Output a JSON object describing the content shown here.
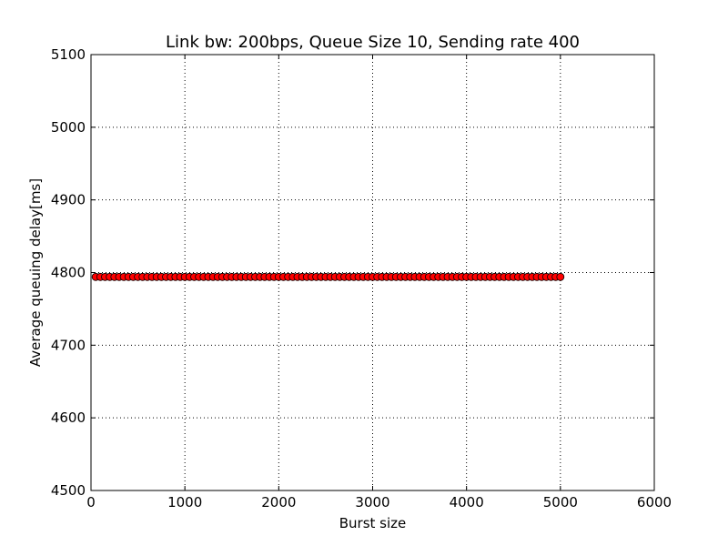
{
  "chart_data": {
    "type": "scatter",
    "title": "Link bw: 200bps, Queue Size 10, Sending rate 400",
    "xlabel": "Burst size",
    "ylabel": "Average queuing delay[ms]",
    "xlim": [
      0,
      6000
    ],
    "ylim": [
      4500,
      5100
    ],
    "xticks": [
      0,
      1000,
      2000,
      3000,
      4000,
      5000,
      6000
    ],
    "yticks": [
      4500,
      4600,
      4700,
      4800,
      4900,
      5000,
      5100
    ],
    "grid": true,
    "marker_color": "#ff0000",
    "marker_edge_color": "#000000",
    "series": [
      {
        "x_start": 50,
        "x_end": 5000,
        "x_step": 50,
        "y_constant": 4794
      }
    ]
  }
}
